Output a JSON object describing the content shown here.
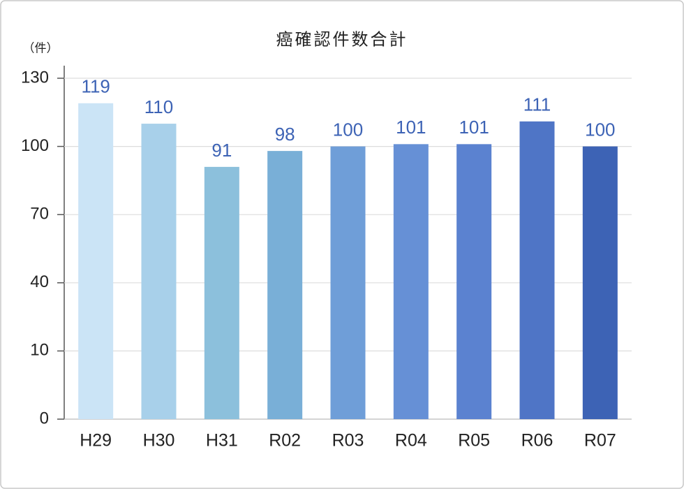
{
  "chart_data": {
    "type": "bar",
    "title": "癌確認件数合計",
    "y_unit_label": "（件）",
    "categories": [
      "H29",
      "H30",
      "H31",
      "R02",
      "R03",
      "R04",
      "R05",
      "R06",
      "R07"
    ],
    "values": [
      119,
      110,
      91,
      98,
      100,
      101,
      101,
      111,
      100
    ],
    "colors": [
      "#cbe4f6",
      "#a8d0ea",
      "#8cc0dc",
      "#79afd7",
      "#6f9ed8",
      "#6690d6",
      "#5b82d0",
      "#4f75c6",
      "#3d63b5"
    ],
    "value_label_color": "#3d63b5",
    "ylim": [
      0,
      130
    ],
    "yticks": [
      0,
      10,
      40,
      70,
      100,
      130
    ],
    "grid": true
  }
}
